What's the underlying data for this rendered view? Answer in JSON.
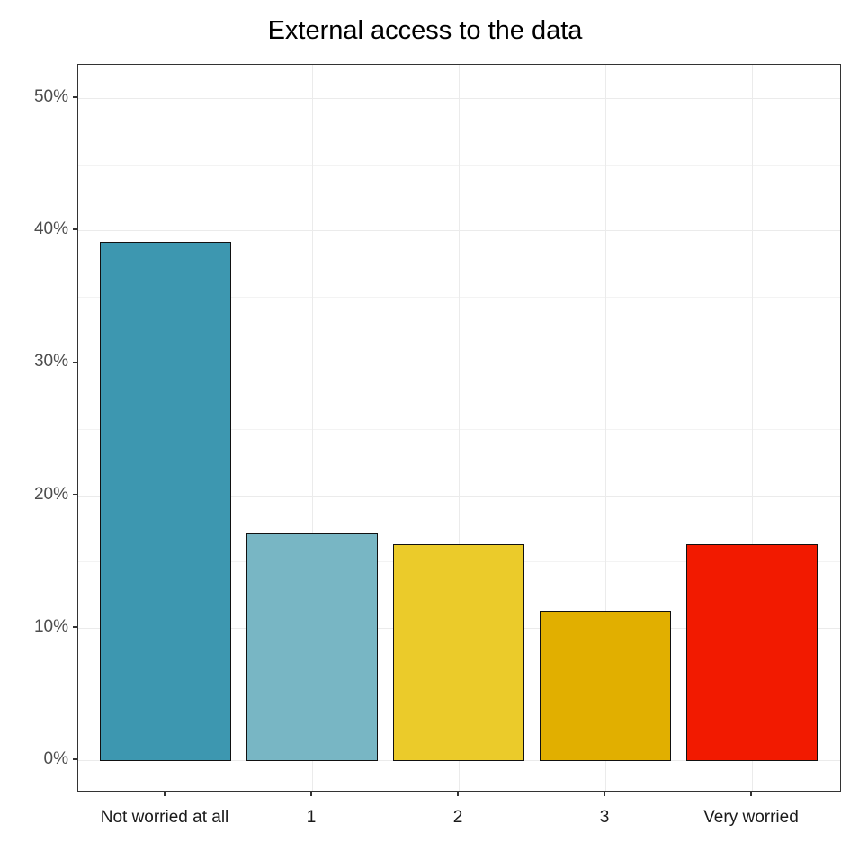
{
  "chart_data": {
    "type": "bar",
    "title": "External access to the data",
    "xlabel": "",
    "ylabel": "",
    "categories": [
      "Not worried at all",
      "1",
      "2",
      "3",
      "Very worried"
    ],
    "values": [
      39.1,
      17.1,
      16.3,
      11.3,
      16.3
    ],
    "value_format": "percent",
    "colors": [
      "#3d97b0",
      "#78b6c4",
      "#ebcb2a",
      "#e1af00",
      "#f21a00"
    ],
    "ylim": [
      0,
      52
    ],
    "yticks": [
      0,
      10,
      20,
      30,
      40,
      50
    ],
    "ytick_labels": [
      "0%",
      "10%",
      "20%",
      "30%",
      "40%",
      "50%"
    ],
    "grid": true,
    "legend": null
  }
}
